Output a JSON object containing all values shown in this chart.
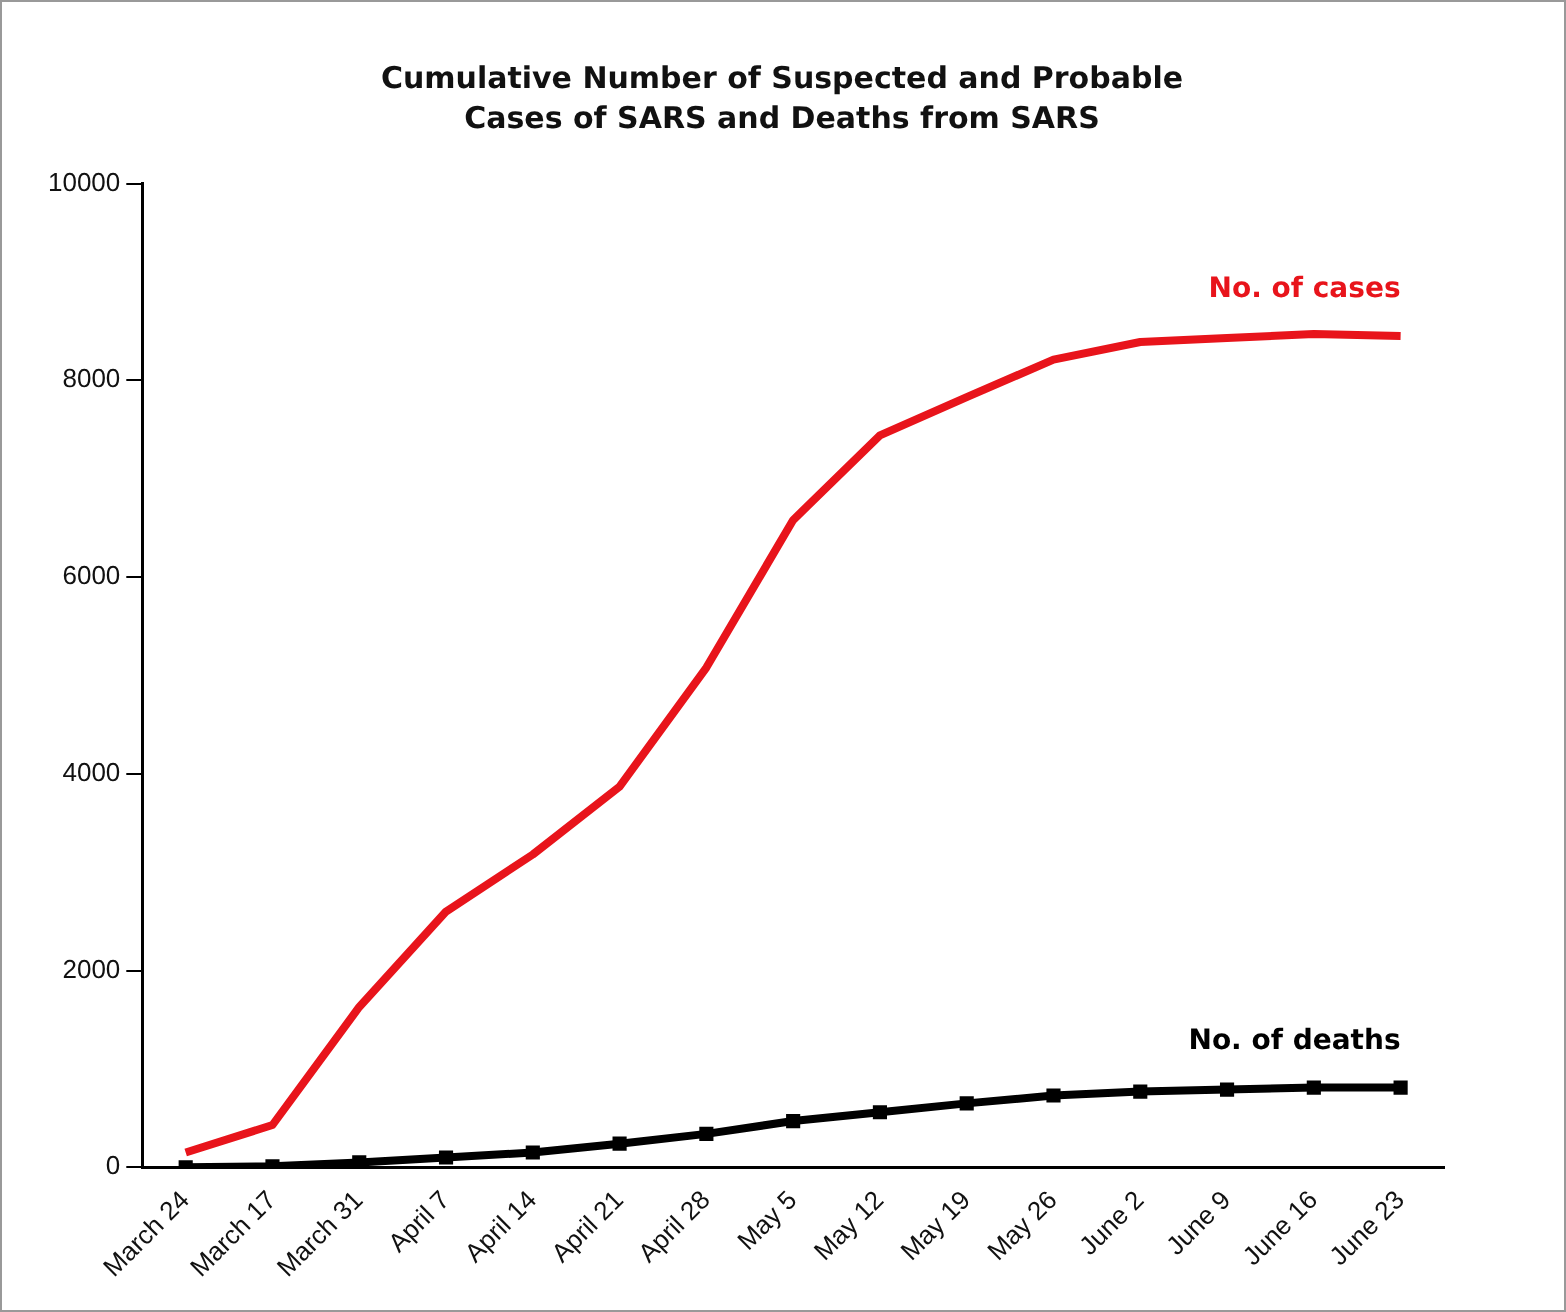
{
  "chart_data": {
    "type": "line",
    "title": "Cumulative Number of Suspected and Probable Cases of SARS and Deaths from SARS",
    "categories": [
      "March 24",
      "March 17",
      "March 31",
      "April 7",
      "April 14",
      "April 21",
      "April 28",
      "May 5",
      "May 12",
      "May 19",
      "May 26",
      "June 2",
      "June 9",
      "June 16",
      "June 23"
    ],
    "series": [
      {
        "name": "No. of cases",
        "color": "#e8141b",
        "marker": "none",
        "values": [
          150,
          430,
          1630,
          2600,
          3180,
          3870,
          5080,
          6580,
          7440,
          7830,
          8210,
          8390,
          8430,
          8470,
          8450
        ]
      },
      {
        "name": "No. of deaths",
        "color": "#000000",
        "marker": "square",
        "values": [
          0,
          10,
          50,
          100,
          150,
          240,
          340,
          470,
          560,
          650,
          730,
          770,
          790,
          810,
          810
        ]
      }
    ],
    "ylim": [
      0,
      10000
    ],
    "yticks": [
      0,
      2000,
      4000,
      6000,
      8000,
      10000
    ],
    "grid": false,
    "legend": false
  }
}
